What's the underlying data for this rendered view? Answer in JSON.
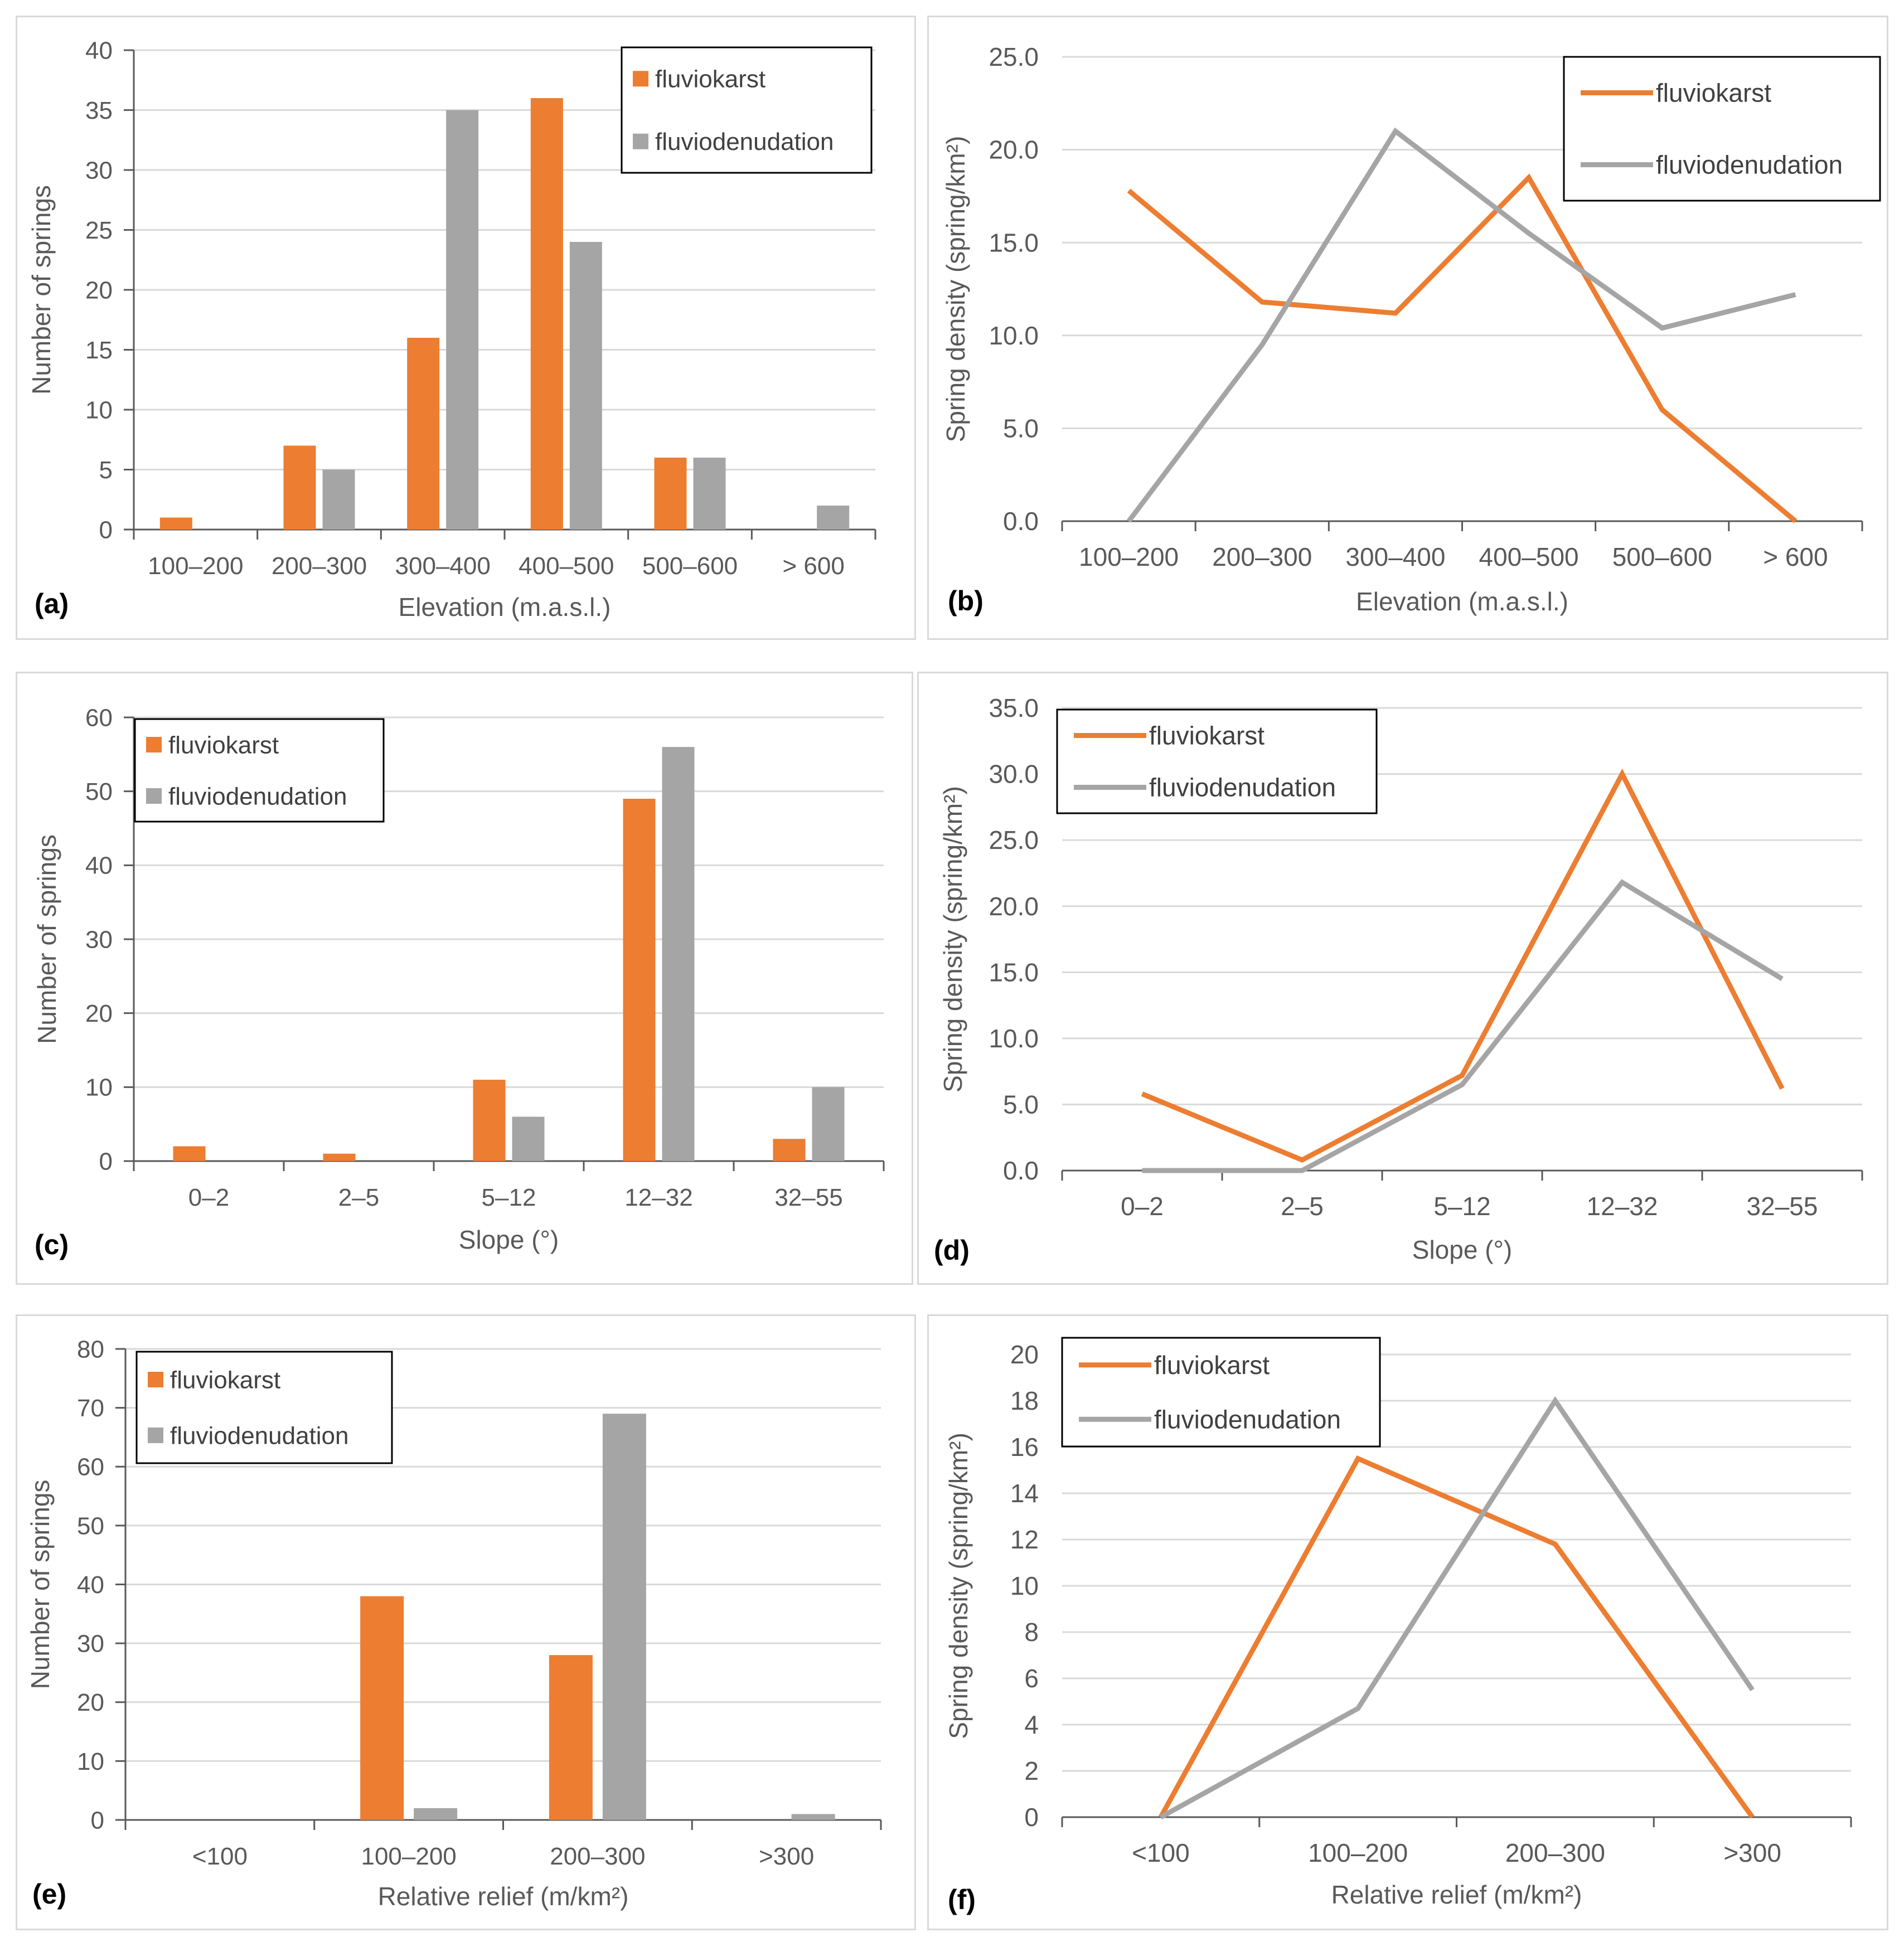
{
  "colors": {
    "fluviokarst": "#ED7D31",
    "fluviodenudation": "#A5A5A5",
    "grid": "#d9d9d9",
    "axis": "#595959"
  },
  "chart_data": [
    {
      "id": "a",
      "type": "bar",
      "panel_label": "(a)",
      "categories": [
        "100–200",
        "200–300",
        "300–400",
        "400–500",
        "500–600",
        "> 600"
      ],
      "series": [
        {
          "name": "fluviokarst",
          "values": [
            1,
            7,
            16,
            36,
            6,
            0
          ]
        },
        {
          "name": "fluviodenudation",
          "values": [
            0,
            5,
            35,
            24,
            6,
            2
          ]
        }
      ],
      "xlabel": "Elevation (m.a.s.l.)",
      "ylabel": "Number of springs",
      "ylim": [
        0,
        40
      ],
      "yticks": [
        "0",
        "5",
        "10",
        "15",
        "20",
        "25",
        "30",
        "35",
        "40"
      ],
      "legend_position": "top-right",
      "grid": true
    },
    {
      "id": "b",
      "type": "line",
      "panel_label": "(b)",
      "categories": [
        "100–200",
        "200–300",
        "300–400",
        "400–500",
        "500–600",
        "> 600"
      ],
      "series": [
        {
          "name": "fluviokarst",
          "values": [
            17.8,
            11.8,
            11.2,
            18.5,
            6.0,
            0.0
          ]
        },
        {
          "name": "fluviodenudation",
          "values": [
            0.0,
            9.5,
            21.0,
            15.5,
            10.4,
            12.2
          ]
        }
      ],
      "xlabel": "Elevation (m.a.s.l.)",
      "ylabel": "Spring density (spring/km²)",
      "ylim": [
        0,
        25
      ],
      "yticks": [
        "0.0",
        "5.0",
        "10.0",
        "15.0",
        "20.0",
        "25.0"
      ],
      "legend_position": "top-right",
      "grid": true
    },
    {
      "id": "c",
      "type": "bar",
      "panel_label": "(c)",
      "categories": [
        "0–2",
        "2–5",
        "5–12",
        "12–32",
        "32–55"
      ],
      "series": [
        {
          "name": "fluviokarst",
          "values": [
            2,
            1,
            11,
            49,
            3
          ]
        },
        {
          "name": "fluviodenudation",
          "values": [
            0,
            0,
            6,
            56,
            10
          ]
        }
      ],
      "xlabel": "Slope (°)",
      "ylabel": "Number of springs",
      "ylim": [
        0,
        60
      ],
      "yticks": [
        "0",
        "10",
        "20",
        "30",
        "40",
        "50",
        "60"
      ],
      "legend_position": "top-left",
      "grid": true
    },
    {
      "id": "d",
      "type": "line",
      "panel_label": "(d)",
      "categories": [
        "0–2",
        "2–5",
        "5–12",
        "12–32",
        "32–55"
      ],
      "series": [
        {
          "name": "fluviokarst",
          "values": [
            5.8,
            0.8,
            7.2,
            30.0,
            6.2
          ]
        },
        {
          "name": "fluviodenudation",
          "values": [
            0.0,
            0.0,
            6.5,
            21.8,
            14.5
          ]
        }
      ],
      "xlabel": "Slope (°)",
      "ylabel": "Spring density (spring/km²)",
      "ylim": [
        0,
        35
      ],
      "yticks": [
        "0.0",
        "5.0",
        "10.0",
        "15.0",
        "20.0",
        "25.0",
        "30.0",
        "35.0"
      ],
      "legend_position": "top-left",
      "grid": true
    },
    {
      "id": "e",
      "type": "bar",
      "panel_label": "(e)",
      "categories": [
        "<100",
        "100–200",
        "200–300",
        ">300"
      ],
      "series": [
        {
          "name": "fluviokarst",
          "values": [
            0,
            38,
            28,
            0
          ]
        },
        {
          "name": "fluviodenudation",
          "values": [
            0,
            2,
            69,
            1
          ]
        }
      ],
      "xlabel": "Relative relief (m/km²)",
      "ylabel": "Number of springs",
      "ylim": [
        0,
        80
      ],
      "yticks": [
        "0",
        "10",
        "20",
        "30",
        "40",
        "50",
        "60",
        "70",
        "80"
      ],
      "legend_position": "top-left",
      "grid": true
    },
    {
      "id": "f",
      "type": "line",
      "panel_label": "(f)",
      "categories": [
        "<100",
        "100–200",
        "200–300",
        ">300"
      ],
      "series": [
        {
          "name": "fluviokarst",
          "values": [
            0,
            15.5,
            11.8,
            0
          ]
        },
        {
          "name": "fluviodenudation",
          "values": [
            0,
            4.7,
            18.0,
            5.5
          ]
        }
      ],
      "xlabel": "Relative relief (m/km²)",
      "ylabel": "Spring density (spring/km²)",
      "ylim": [
        0,
        20
      ],
      "yticks": [
        "0",
        "2",
        "4",
        "6",
        "8",
        "10",
        "12",
        "14",
        "16",
        "18",
        "20"
      ],
      "legend_position": "top-left",
      "grid": true
    }
  ]
}
